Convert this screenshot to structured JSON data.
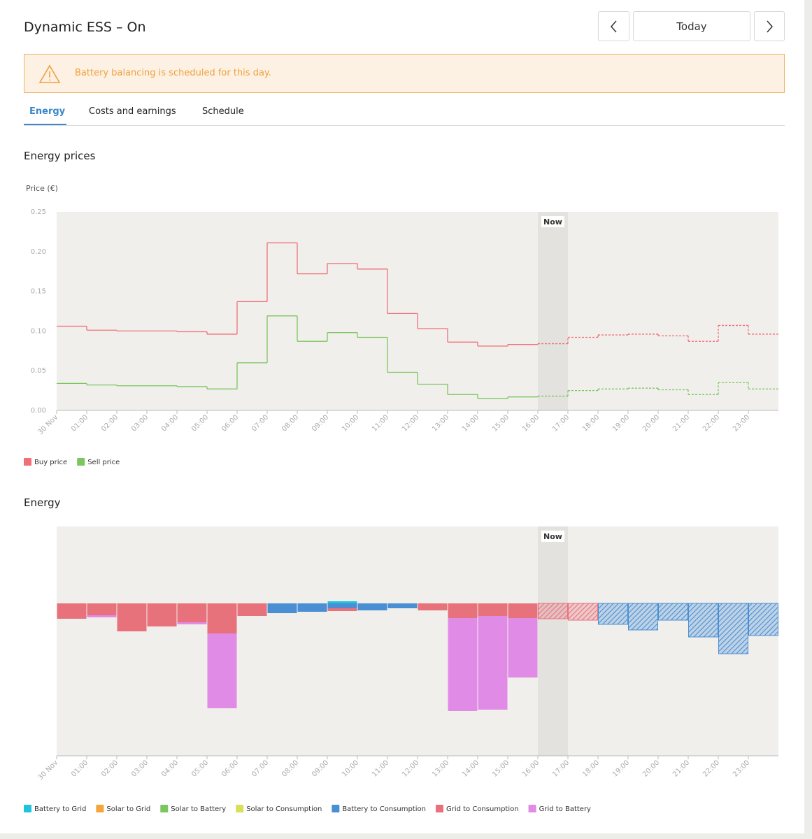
{
  "header": {
    "title": "Dynamic ESS – On",
    "today_button": "Today"
  },
  "alert": {
    "text": "Battery balancing is scheduled for this day."
  },
  "tabs": [
    "Energy",
    "Costs and earnings",
    "Schedule"
  ],
  "chart_data": [
    {
      "type": "line",
      "title": "Energy prices",
      "y_label": "Price (€)",
      "now_label": "Now",
      "now_index": 16,
      "categories": [
        "30 Nov",
        "01:00",
        "02:00",
        "03:00",
        "04:00",
        "05:00",
        "06:00",
        "07:00",
        "08:00",
        "09:00",
        "10:00",
        "11:00",
        "12:00",
        "13:00",
        "14:00",
        "15:00",
        "16:00",
        "17:00",
        "18:00",
        "19:00",
        "20:00",
        "21:00",
        "22:00",
        "23:00"
      ],
      "series": [
        {
          "name": "Buy price",
          "color": "#f07078",
          "values": [
            0.106,
            0.101,
            0.1,
            0.1,
            0.099,
            0.096,
            0.137,
            0.211,
            0.172,
            0.185,
            0.178,
            0.122,
            0.103,
            0.086,
            0.081,
            0.083,
            0.084,
            0.092,
            0.095,
            0.096,
            0.094,
            0.087,
            0.107,
            0.096
          ]
        },
        {
          "name": "Sell price",
          "color": "#7cc660",
          "values": [
            0.034,
            0.032,
            0.031,
            0.031,
            0.03,
            0.027,
            0.06,
            0.119,
            0.087,
            0.098,
            0.092,
            0.048,
            0.033,
            0.02,
            0.015,
            0.017,
            0.018,
            0.025,
            0.027,
            0.028,
            0.026,
            0.02,
            0.035,
            0.027
          ]
        }
      ],
      "ylim": [
        0,
        0.25
      ],
      "yticks": [
        {
          "value": 0,
          "label": "0.00"
        },
        0.05,
        {
          "value": 0.1,
          "label": "0.10"
        },
        0.15,
        {
          "value": 0.2,
          "label": "0.20"
        },
        0.25
      ]
    },
    {
      "type": "stacked_bar",
      "title": "Energy",
      "now_label": "Now",
      "now_index": 16,
      "categories": [
        "30 Nov",
        "01:00",
        "02:00",
        "03:00",
        "04:00",
        "05:00",
        "06:00",
        "07:00",
        "08:00",
        "09:00",
        "10:00",
        "11:00",
        "12:00",
        "13:00",
        "14:00",
        "15:00",
        "16:00",
        "17:00",
        "18:00",
        "19:00",
        "20:00",
        "21:00",
        "22:00",
        "23:00"
      ],
      "ylim": [
        -4.36,
        2.2
      ],
      "series": [
        {
          "name": "Battery to Grid",
          "color": "#1fc4dc",
          "values": [
            0,
            0,
            0,
            0,
            0,
            0,
            0,
            0,
            0,
            0.06,
            0,
            0,
            0,
            0,
            0,
            0,
            0,
            0,
            0,
            0,
            0,
            0,
            0,
            0
          ]
        },
        {
          "name": "Solar to Grid",
          "color": "#f5a53a",
          "values": [
            0,
            0,
            0,
            0,
            0,
            0,
            0,
            0,
            0,
            0,
            0,
            0,
            0,
            0,
            0,
            0,
            0,
            0,
            0,
            0,
            0,
            0,
            0,
            0
          ]
        },
        {
          "name": "Solar to Battery",
          "color": "#7cc660",
          "values": [
            0,
            0,
            0,
            0,
            0,
            0,
            0,
            0,
            0,
            0,
            0,
            0,
            0,
            0,
            0,
            0,
            0,
            0,
            0,
            0,
            0,
            0,
            0,
            0
          ]
        },
        {
          "name": "Solar to Consumption",
          "color": "#d6e05a",
          "values": [
            0,
            0,
            0,
            0,
            0,
            0,
            0,
            0,
            0,
            0,
            0,
            0,
            0,
            0,
            0,
            0,
            0,
            0,
            0,
            0,
            0,
            0,
            0,
            0
          ]
        },
        {
          "name": "Battery to Consumption",
          "color": "#4a8fd4",
          "values": [
            0,
            0,
            0,
            0,
            0,
            0,
            0,
            -0.28,
            -0.24,
            -0.14,
            -0.2,
            -0.14,
            0,
            0,
            0,
            0,
            0,
            0,
            -0.6,
            -0.76,
            -0.48,
            -0.96,
            -1.44,
            -0.92
          ]
        },
        {
          "name": "Grid to Consumption",
          "color": "#e8727c",
          "values": [
            -0.44,
            -0.34,
            -0.8,
            -0.66,
            -0.54,
            -0.86,
            -0.36,
            0,
            0,
            -0.08,
            0,
            0,
            -0.2,
            -0.42,
            -0.36,
            -0.42,
            -0.44,
            -0.48,
            0,
            0,
            0,
            0,
            0,
            0
          ]
        },
        {
          "name": "Grid to Battery",
          "color": "#e08be6",
          "values": [
            0,
            -0.06,
            0,
            0,
            -0.06,
            -2.14,
            0,
            0,
            0,
            0,
            0,
            0,
            0,
            -2.66,
            -2.68,
            -1.7,
            0,
            0,
            0,
            0,
            0,
            0,
            0,
            0
          ]
        }
      ]
    }
  ]
}
